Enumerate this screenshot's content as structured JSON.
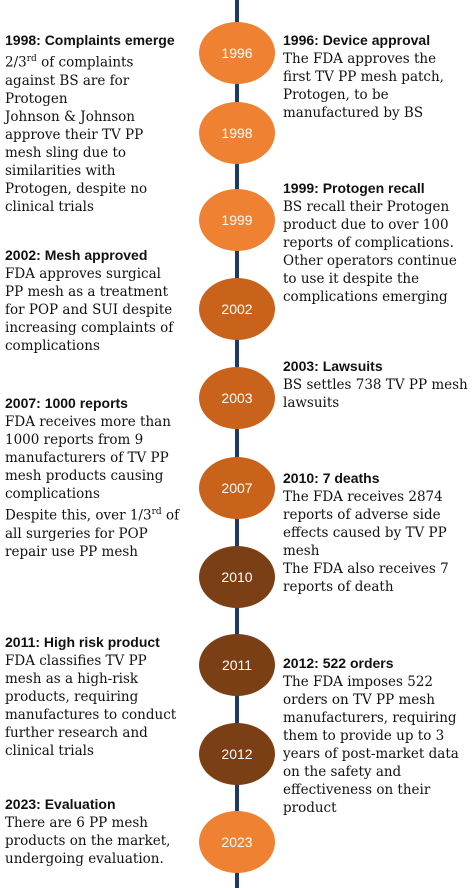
{
  "colors": {
    "axis": "#1f3864",
    "node_light": "#ee8232",
    "node_mid": "#c9631b",
    "node_dark": "#7b3f16"
  },
  "nodes": [
    {
      "label": "1996",
      "color": "#ee8232"
    },
    {
      "label": "1998",
      "color": "#ee8232"
    },
    {
      "label": "1999",
      "color": "#ee8232"
    },
    {
      "label": "2002",
      "color": "#c9631b"
    },
    {
      "label": "2003",
      "color": "#c9631b"
    },
    {
      "label": "2007",
      "color": "#c9631b"
    },
    {
      "label": "2010",
      "color": "#7b3f16"
    },
    {
      "label": "2011",
      "color": "#7b3f16"
    },
    {
      "label": "2012",
      "color": "#7b3f16"
    },
    {
      "label": "2023",
      "color": "#ee8232"
    }
  ],
  "events": {
    "e1998": {
      "title": "1998: Complaints emerge",
      "lines": [
        "2/3rd of complaints",
        "against BS are for",
        "Protogen",
        "Johnson & Johnson",
        "approve their TV PP",
        "mesh sling due to",
        "similarities with",
        "Protogen, despite no",
        "clinical trials"
      ]
    },
    "e1996": {
      "title": "1996: Device approval",
      "lines": [
        "The FDA approves the",
        "first TV PP mesh patch,",
        "Protogen, to be",
        "manufactured by BS"
      ]
    },
    "e1999": {
      "title": "1999: Protogen recall",
      "lines": [
        "BS recall their Protogen",
        "product due to over 100",
        "reports of complications.",
        "Other operators continue",
        "to use it despite the",
        "complications emerging"
      ]
    },
    "e2002": {
      "title": "2002: Mesh approved",
      "lines": [
        "FDA approves surgical",
        "PP mesh as a treatment",
        "for POP and SUI despite",
        "increasing complaints of",
        "complications"
      ]
    },
    "e2003": {
      "title": "2003: Lawsuits",
      "lines": [
        "BS settles 738 TV PP mesh",
        "lawsuits"
      ]
    },
    "e2007": {
      "title": "2007: 1000 reports",
      "lines": [
        "FDA receives more than",
        "1000 reports from 9",
        "manufacturers of TV PP",
        "mesh products causing",
        "complications",
        "Despite this, over 1/3rd of",
        "all surgeries for POP",
        "repair use PP mesh"
      ]
    },
    "e2010": {
      "title": "2010: 7 deaths",
      "lines": [
        "The FDA receives 2874",
        "reports of adverse side",
        "effects caused by TV PP",
        "mesh",
        "The FDA also receives 7",
        "reports of death"
      ]
    },
    "e2011": {
      "title": "2011: High risk product",
      "lines": [
        "FDA classifies TV PP",
        "mesh as a high-risk",
        "products, requiring",
        "manufactures to conduct",
        "further research and",
        "clinical trials"
      ]
    },
    "e2012": {
      "title": "2012: 522 orders",
      "lines": [
        "The FDA imposes 522",
        "orders on TV PP mesh",
        "manufacturers, requiring",
        "them to provide up to 3",
        "years of post-market data",
        "on the safety and",
        "effectiveness on their",
        "product"
      ]
    },
    "e2023": {
      "title": "2023: Evaluation",
      "lines": [
        "There are 6 PP mesh",
        "products on the market,",
        "undergoing evaluation."
      ]
    }
  }
}
